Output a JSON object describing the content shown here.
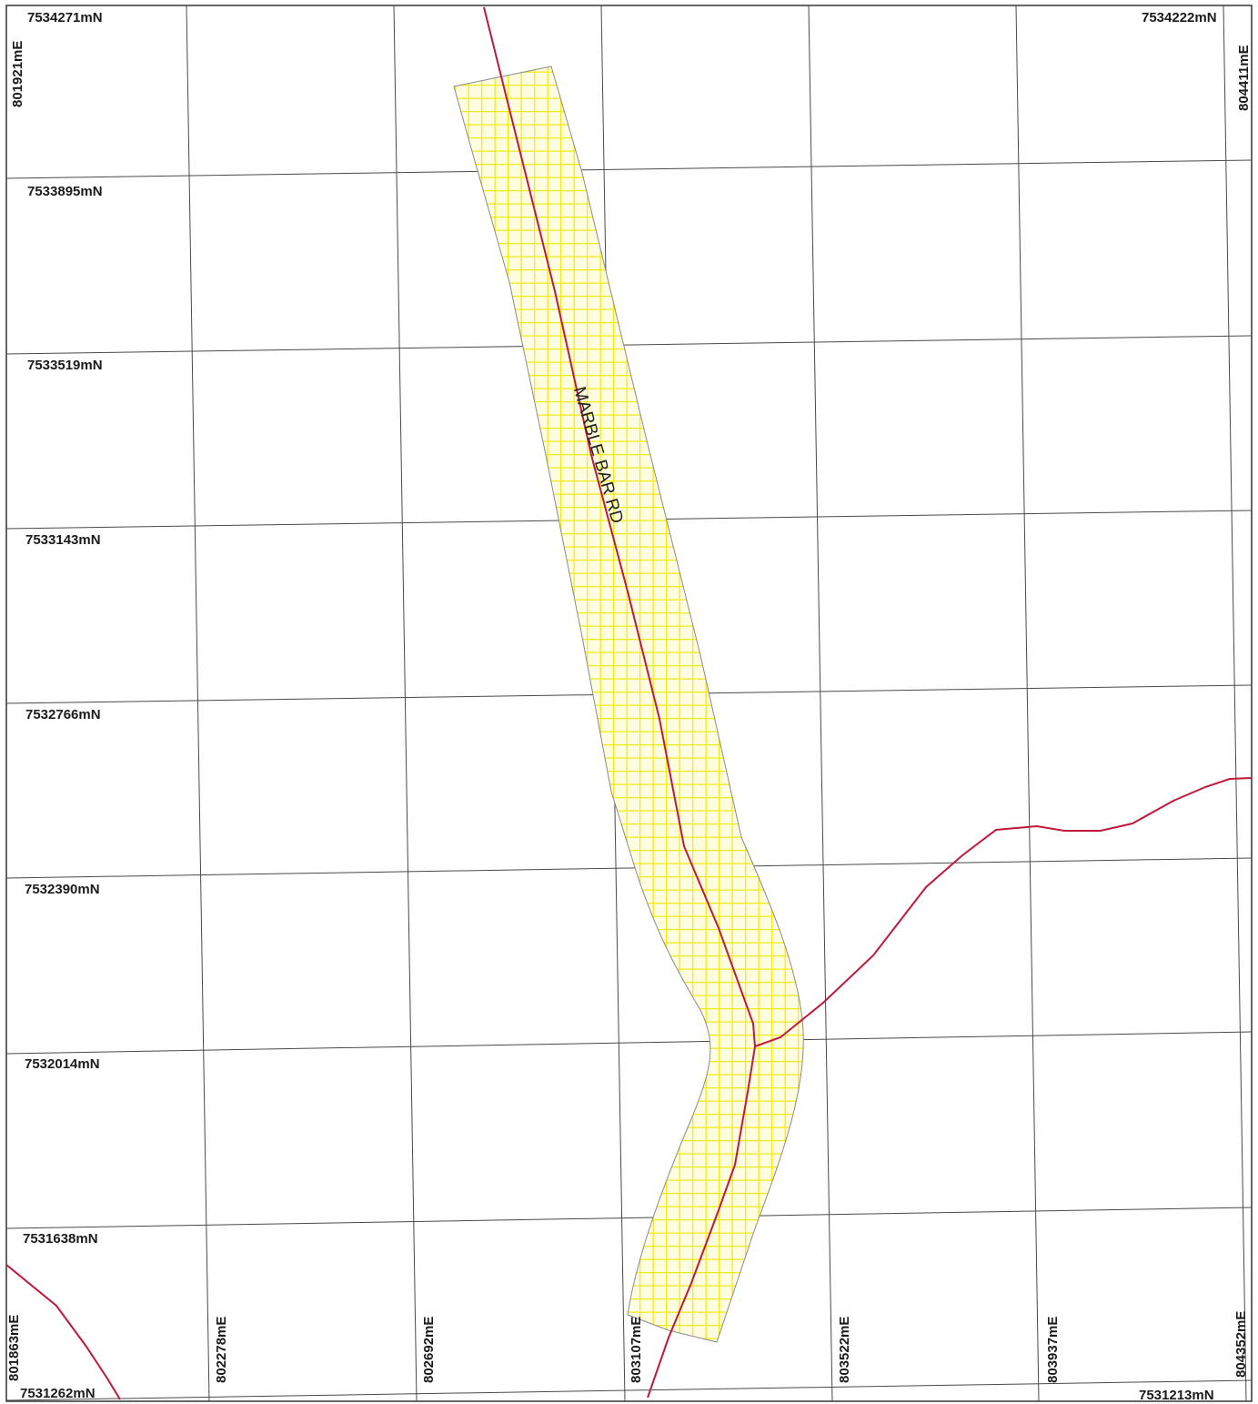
{
  "map": {
    "northing_labels": [
      "7534271mN",
      "7533895mN",
      "7533519mN",
      "7533143mN",
      "7532766mN",
      "7532390mN",
      "7532014mN",
      "7531638mN",
      "7531262mN"
    ],
    "top_right_northing": "7534222mN",
    "bottom_right_northing": "7531213mN",
    "top_left_easting": "801921mE",
    "top_right_easting": "804411mE",
    "easting_labels": [
      "801863mE",
      "802278mE",
      "802692mE",
      "803107mE",
      "803522mE",
      "803937mE",
      "804352mE"
    ],
    "road_label": "MARBLE BAR RD",
    "colors": {
      "grid": "#4a4a4a",
      "road": "#c0183a",
      "reserve_fill": "#fffde0",
      "reserve_hatch": "#f2ea16",
      "reserve_border": "#8a8a8a",
      "frame": "#333333"
    }
  }
}
